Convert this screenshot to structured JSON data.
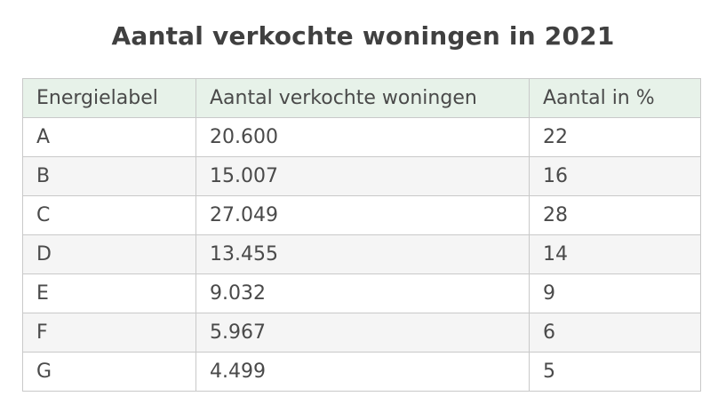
{
  "title": "Aantal verkochte woningen in 2021",
  "table": {
    "headers": [
      "Energielabel",
      "Aantal verkochte woningen",
      "Aantal in %"
    ],
    "rows": [
      [
        "A",
        "20.600",
        "22"
      ],
      [
        "B",
        "15.007",
        "16"
      ],
      [
        "C",
        "27.049",
        "28"
      ],
      [
        "D",
        "13.455",
        "14"
      ],
      [
        "E",
        "9.032",
        "9"
      ],
      [
        "F",
        "5.967",
        "6"
      ],
      [
        "G",
        "4.499",
        "5"
      ]
    ]
  },
  "colors": {
    "header_background": "#e7f2e9",
    "stripe_background": "#f5f5f5",
    "border": "#c9c9c9",
    "text": "#404040"
  }
}
